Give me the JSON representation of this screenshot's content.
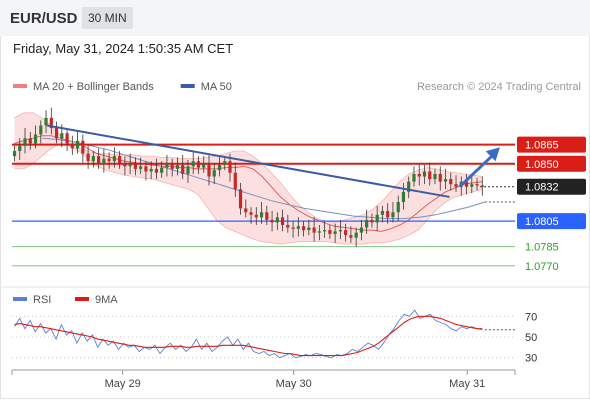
{
  "header": {
    "pair": "EUR/USD",
    "timeframe": "30 MIN"
  },
  "datetime": "Friday, May 31, 2024 1:50:35 AM CET",
  "legend": {
    "items": [
      {
        "label": "MA 20 + Bollinger Bands",
        "color": "#f08080"
      },
      {
        "label": "MA 50",
        "color": "#3b5ba5"
      }
    ],
    "credit": "Research © 2024 Trading Central"
  },
  "rsi_legend": {
    "items": [
      {
        "label": "RSI",
        "color": "#5b7fd6"
      },
      {
        "label": "9MA",
        "color": "#d91e18"
      }
    ]
  },
  "chart_data": [
    {
      "type": "candlestick",
      "ylim": [
        1.0762,
        1.09
      ],
      "x_ticks": [
        "May 29",
        "May 30",
        "May 31"
      ],
      "levels": [
        {
          "value": 1.0865,
          "label": "1.0865",
          "kind": "resistance",
          "color": "#d91e18"
        },
        {
          "value": 1.085,
          "label": "1.0850",
          "kind": "resistance",
          "color": "#d91e18"
        },
        {
          "value": 1.0832,
          "label": "1.0832",
          "kind": "last-price",
          "color": "#222222"
        },
        {
          "value": 1.0805,
          "label": "1.0805",
          "kind": "pivot",
          "color": "#2962ff"
        },
        {
          "value": 1.0785,
          "label": "1.0785",
          "kind": "support",
          "color": "#2e9e2e"
        },
        {
          "value": 1.077,
          "label": "1.0770",
          "kind": "support",
          "color": "#2e9e2e"
        }
      ],
      "close_series": [
        1.086,
        1.0864,
        1.087,
        1.0866,
        1.0873,
        1.088,
        1.0886,
        1.0878,
        1.087,
        1.0874,
        1.0866,
        1.0862,
        1.0868,
        1.0858,
        1.0852,
        1.0856,
        1.085,
        1.0854,
        1.0852,
        1.0856,
        1.085,
        1.0848,
        1.085,
        1.0846,
        1.0848,
        1.0844,
        1.0846,
        1.0843,
        1.0847,
        1.085,
        1.0846,
        1.0849,
        1.0842,
        1.0848,
        1.0852,
        1.0847,
        1.085,
        1.084,
        1.0845,
        1.0849,
        1.0852,
        1.0843,
        1.083,
        1.0815,
        1.0812,
        1.081,
        1.0808,
        1.0812,
        1.0806,
        1.0804,
        1.0808,
        1.0802,
        1.08,
        1.0799,
        1.0801,
        1.0798,
        1.08,
        1.0796,
        1.0797,
        1.0798,
        1.0795,
        1.0797,
        1.0798,
        1.0794,
        1.0792,
        1.0796,
        1.08,
        1.0806,
        1.0804,
        1.081,
        1.0813,
        1.0808,
        1.0812,
        1.082,
        1.0828,
        1.0836,
        1.0842,
        1.084,
        1.0844,
        1.0838,
        1.0842,
        1.0836,
        1.0838,
        1.0834,
        1.0832,
        1.0836,
        1.0832,
        1.0834,
        1.0833,
        1.0832
      ],
      "ma20": [
        1.0866,
        1.0868,
        1.087,
        1.0872,
        1.0872,
        1.087,
        1.0868,
        1.0866,
        1.0862,
        1.0858,
        1.0856,
        1.0854,
        1.0852,
        1.0851,
        1.085,
        1.0849,
        1.0848,
        1.0848,
        1.0847,
        1.0847,
        1.0846,
        1.0846,
        1.0846,
        1.0847,
        1.0847,
        1.0848,
        1.0846,
        1.084,
        1.0832,
        1.0824,
        1.0818,
        1.0813,
        1.0809,
        1.0806,
        1.0803,
        1.0801,
        1.08,
        1.0799,
        1.0798,
        1.0798,
        1.0797,
        1.0799,
        1.0802,
        1.0806,
        1.0812,
        1.0818,
        1.0823,
        1.0828,
        1.0831,
        1.0834,
        1.0835,
        1.0836
      ],
      "bb_upper": [
        1.0886,
        1.089,
        1.089,
        1.0886,
        1.088,
        1.0872,
        1.0866,
        1.0862,
        1.086,
        1.0858,
        1.0858,
        1.0857,
        1.0857,
        1.0857,
        1.0856,
        1.0856,
        1.0855,
        1.0855,
        1.0854,
        1.0854,
        1.0854,
        1.0855,
        1.0856,
        1.0858,
        1.086,
        1.086,
        1.0856,
        1.085,
        1.0843,
        1.0835,
        1.0826,
        1.0818,
        1.0812,
        1.0807,
        1.0805,
        1.0804,
        1.0806,
        1.0808,
        1.081,
        1.0814,
        1.082,
        1.0828,
        1.0836,
        1.0842,
        1.0845,
        1.0847,
        1.0846,
        1.0844,
        1.0843,
        1.0842,
        1.0841,
        1.084
      ],
      "bb_lower": [
        1.0846,
        1.0846,
        1.085,
        1.0856,
        1.0862,
        1.0866,
        1.0864,
        1.086,
        1.0854,
        1.0848,
        1.0845,
        1.0843,
        1.0841,
        1.084,
        1.0839,
        1.0838,
        1.0836,
        1.0834,
        1.0832,
        1.083,
        1.0826,
        1.0816,
        1.0806,
        1.08,
        1.0797,
        1.0794,
        1.0791,
        1.0789,
        1.0788,
        1.0787,
        1.0788,
        1.0789,
        1.0789,
        1.0789,
        1.0789,
        1.0788,
        1.0787,
        1.0787,
        1.0787,
        1.0788,
        1.0788,
        1.0789,
        1.0791,
        1.0794,
        1.0798,
        1.0806,
        1.0814,
        1.082,
        1.0824,
        1.0826,
        1.0828,
        1.083
      ],
      "ma50": [
        1.087,
        1.0869,
        1.0867,
        1.0864,
        1.0861,
        1.0857,
        1.0853,
        1.0849,
        1.0845,
        1.0841,
        1.0837,
        1.0833,
        1.0829,
        1.0825,
        1.0821,
        1.0818,
        1.0815,
        1.0813,
        1.0811,
        1.0809,
        1.0808,
        1.0807,
        1.0807,
        1.0808,
        1.081,
        1.0813,
        1.0816,
        1.082
      ],
      "trendlines": [
        {
          "points": [
            [
              0.07,
              1.088
            ],
            [
              0.87,
              1.0824
            ]
          ],
          "color": "#3b5ba5"
        }
      ],
      "forecast_arrow": {
        "from": [
          0.89,
          1.0832
        ],
        "to": [
          0.97,
          1.0863
        ],
        "color": "#3b6bc4"
      }
    },
    {
      "type": "line",
      "name": "RSI",
      "ylim": [
        20,
        80
      ],
      "y_ticks": [
        70,
        50,
        30
      ],
      "series": [
        {
          "name": "RSI",
          "color": "#5b7fd6",
          "values": [
            60,
            68,
            58,
            66,
            55,
            63,
            54,
            58,
            48,
            62,
            52,
            56,
            44,
            54,
            46,
            52,
            40,
            48,
            42,
            46,
            38,
            44,
            40,
            42,
            36,
            40,
            38,
            42,
            34,
            40,
            44,
            38,
            42,
            36,
            40,
            48,
            38,
            44,
            36,
            40,
            46,
            50,
            42,
            48,
            38,
            44,
            36,
            34,
            36,
            32,
            34,
            30,
            32,
            34,
            30,
            31,
            33,
            32,
            34,
            33,
            31,
            30,
            33,
            32,
            34,
            38,
            36,
            40,
            44,
            42,
            38,
            44,
            52,
            58,
            66,
            72,
            70,
            76,
            68,
            70,
            72,
            66,
            64,
            62,
            58,
            56,
            60,
            58,
            60,
            58,
            57
          ]
        },
        {
          "name": "9MA",
          "color": "#d91e18",
          "values": [
            62,
            63,
            62,
            61,
            60,
            60,
            59,
            58,
            57,
            56,
            55,
            54,
            53,
            52,
            51,
            50,
            48,
            47,
            46,
            45,
            44,
            43,
            42,
            42,
            41,
            40,
            40,
            40,
            40,
            40,
            41,
            41,
            41,
            40,
            40,
            41,
            41,
            41,
            41,
            41,
            42,
            42,
            42,
            42,
            42,
            41,
            40,
            39,
            38,
            37,
            36,
            35,
            34,
            34,
            33,
            32,
            32,
            32,
            32,
            32,
            32,
            32,
            32,
            32,
            33,
            34,
            35,
            37,
            39,
            41,
            44,
            48,
            52,
            56,
            60,
            64,
            67,
            69,
            70,
            70,
            70,
            69,
            68,
            66,
            64,
            62,
            61,
            60,
            59,
            58,
            58
          ]
        }
      ]
    }
  ]
}
